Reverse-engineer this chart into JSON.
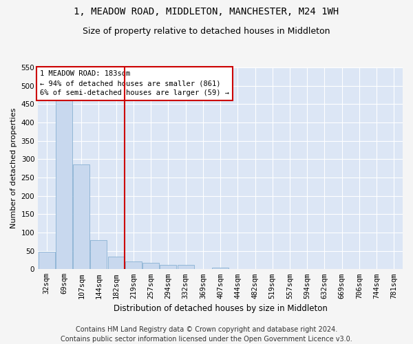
{
  "title": "1, MEADOW ROAD, MIDDLETON, MANCHESTER, M24 1WH",
  "subtitle": "Size of property relative to detached houses in Middleton",
  "xlabel": "Distribution of detached houses by size in Middleton",
  "ylabel": "Number of detached properties",
  "categories": [
    "32sqm",
    "69sqm",
    "107sqm",
    "144sqm",
    "182sqm",
    "219sqm",
    "257sqm",
    "294sqm",
    "332sqm",
    "369sqm",
    "407sqm",
    "444sqm",
    "482sqm",
    "519sqm",
    "557sqm",
    "594sqm",
    "632sqm",
    "669sqm",
    "706sqm",
    "744sqm",
    "781sqm"
  ],
  "values": [
    47,
    460,
    285,
    80,
    35,
    22,
    18,
    11,
    11,
    0,
    5,
    0,
    0,
    0,
    0,
    0,
    0,
    0,
    0,
    0,
    0
  ],
  "bar_color": "#c8d8ee",
  "bar_edge_color": "#7aa8cc",
  "annotation_line1": "1 MEADOW ROAD: 183sqm",
  "annotation_line2": "← 94% of detached houses are smaller (861)",
  "annotation_line3": "6% of semi-detached houses are larger (59) →",
  "annotation_box_facecolor": "#ffffff",
  "annotation_box_edgecolor": "#cc0000",
  "vline_color": "#cc0000",
  "vline_x_index": 4,
  "ylim": [
    0,
    550
  ],
  "yticks": [
    0,
    50,
    100,
    150,
    200,
    250,
    300,
    350,
    400,
    450,
    500,
    550
  ],
  "footer_line1": "Contains HM Land Registry data © Crown copyright and database right 2024.",
  "footer_line2": "Contains public sector information licensed under the Open Government Licence v3.0.",
  "bg_color": "#dce6f5",
  "grid_color": "#ffffff",
  "fig_bg_color": "#f5f5f5",
  "title_fontsize": 10,
  "subtitle_fontsize": 9,
  "ylabel_fontsize": 8,
  "xlabel_fontsize": 8.5,
  "tick_fontsize": 7.5,
  "annotation_fontsize": 7.5,
  "footer_fontsize": 7
}
